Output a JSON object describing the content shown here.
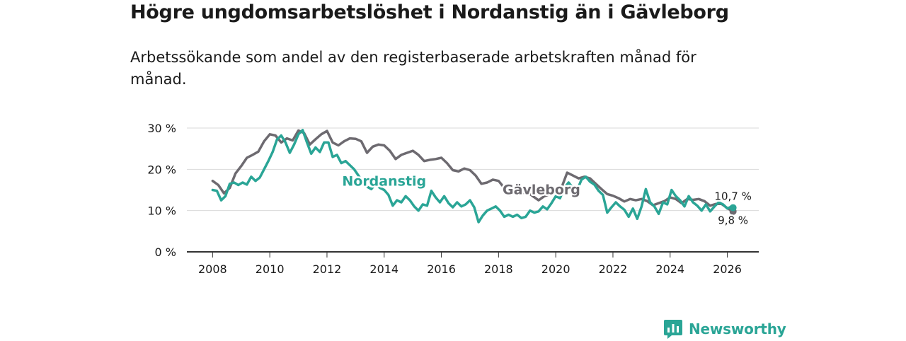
{
  "title": "Högre ungdomsarbetslöshet i Nordanstig än i Gävleborg",
  "subtitle": "Arbetssökande som andel av den registerbaserade arbetskraften månad för månad.",
  "brand": {
    "name": "Newsworthy"
  },
  "colors": {
    "nordanstig": "#2aa596",
    "gavleborg": "#6d6a70",
    "grid": "#d9d9d9",
    "axis": "#333333",
    "text": "#1a1a1a"
  },
  "chart_data": {
    "type": "line",
    "title": "Högre ungdomsarbetslöshet i Nordanstig än i Gävleborg",
    "xlabel": "",
    "ylabel": "",
    "xlim": [
      2007.1,
      2027.1
    ],
    "ylim": [
      0,
      30
    ],
    "y_ticks": [
      0,
      10,
      20,
      30
    ],
    "y_tick_labels": [
      "0 %",
      "10 %",
      "20 %",
      "30 %"
    ],
    "x_ticks": [
      2008,
      2010,
      2012,
      2014,
      2016,
      2018,
      2020,
      2022,
      2024,
      2026
    ],
    "x_tick_labels": [
      "2008",
      "2010",
      "2012",
      "2014",
      "2016",
      "2018",
      "2020",
      "2022",
      "2024",
      "2026"
    ],
    "grid": true,
    "series": [
      {
        "name": "Gävleborg",
        "label": "Gävleborg",
        "end_label": "9,8 %",
        "points": [
          [
            2008.0,
            17.2
          ],
          [
            2008.2,
            16.2
          ],
          [
            2008.4,
            14.2
          ],
          [
            2008.6,
            15.5
          ],
          [
            2008.8,
            19.0
          ],
          [
            2009.0,
            20.8
          ],
          [
            2009.2,
            22.8
          ],
          [
            2009.4,
            23.5
          ],
          [
            2009.6,
            24.3
          ],
          [
            2009.8,
            26.8
          ],
          [
            2010.0,
            28.5
          ],
          [
            2010.2,
            28.2
          ],
          [
            2010.4,
            26.5
          ],
          [
            2010.6,
            27.5
          ],
          [
            2010.8,
            27.0
          ],
          [
            2011.0,
            29.4
          ],
          [
            2011.2,
            28.8
          ],
          [
            2011.4,
            26.0
          ],
          [
            2011.6,
            27.3
          ],
          [
            2011.8,
            28.5
          ],
          [
            2012.0,
            29.3
          ],
          [
            2012.2,
            26.5
          ],
          [
            2012.4,
            25.8
          ],
          [
            2012.6,
            26.8
          ],
          [
            2012.8,
            27.5
          ],
          [
            2013.0,
            27.4
          ],
          [
            2013.2,
            26.8
          ],
          [
            2013.4,
            24.0
          ],
          [
            2013.6,
            25.5
          ],
          [
            2013.8,
            26.0
          ],
          [
            2014.0,
            25.8
          ],
          [
            2014.2,
            24.5
          ],
          [
            2014.4,
            22.5
          ],
          [
            2014.6,
            23.5
          ],
          [
            2014.8,
            24.0
          ],
          [
            2015.0,
            24.5
          ],
          [
            2015.2,
            23.5
          ],
          [
            2015.4,
            22.0
          ],
          [
            2015.6,
            22.3
          ],
          [
            2015.8,
            22.5
          ],
          [
            2016.0,
            22.8
          ],
          [
            2016.2,
            21.5
          ],
          [
            2016.4,
            19.8
          ],
          [
            2016.6,
            19.5
          ],
          [
            2016.8,
            20.2
          ],
          [
            2017.0,
            19.8
          ],
          [
            2017.2,
            18.5
          ],
          [
            2017.4,
            16.5
          ],
          [
            2017.6,
            16.8
          ],
          [
            2017.8,
            17.5
          ],
          [
            2018.0,
            17.2
          ],
          [
            2018.2,
            15.5
          ],
          [
            2018.4,
            13.8
          ],
          [
            2018.6,
            14.5
          ],
          [
            2018.8,
            14.2
          ],
          [
            2019.0,
            14.5
          ],
          [
            2019.2,
            13.5
          ],
          [
            2019.4,
            12.5
          ],
          [
            2019.6,
            13.5
          ],
          [
            2019.8,
            14.0
          ],
          [
            2020.0,
            14.8
          ],
          [
            2020.2,
            15.5
          ],
          [
            2020.4,
            19.2
          ],
          [
            2020.6,
            18.5
          ],
          [
            2020.8,
            17.8
          ],
          [
            2021.0,
            18.2
          ],
          [
            2021.2,
            17.8
          ],
          [
            2021.4,
            16.5
          ],
          [
            2021.6,
            15.2
          ],
          [
            2021.8,
            14.0
          ],
          [
            2022.0,
            13.6
          ],
          [
            2022.2,
            13.0
          ],
          [
            2022.4,
            12.2
          ],
          [
            2022.6,
            12.8
          ],
          [
            2022.8,
            12.5
          ],
          [
            2023.0,
            12.8
          ],
          [
            2023.2,
            12.3
          ],
          [
            2023.4,
            11.3
          ],
          [
            2023.6,
            11.8
          ],
          [
            2023.8,
            12.3
          ],
          [
            2024.0,
            13.2
          ],
          [
            2024.2,
            12.8
          ],
          [
            2024.4,
            11.8
          ],
          [
            2024.6,
            12.8
          ],
          [
            2024.8,
            12.6
          ],
          [
            2025.0,
            12.8
          ],
          [
            2025.2,
            12.3
          ],
          [
            2025.4,
            11.2
          ],
          [
            2025.6,
            11.6
          ],
          [
            2025.8,
            11.6
          ],
          [
            2026.0,
            10.6
          ],
          [
            2026.2,
            9.8
          ]
        ]
      },
      {
        "name": "Nordanstig",
        "label": "Nordanstig",
        "end_label": "10,7 %",
        "points": [
          [
            2008.0,
            15.0
          ],
          [
            2008.15,
            14.8
          ],
          [
            2008.3,
            12.5
          ],
          [
            2008.45,
            13.5
          ],
          [
            2008.6,
            16.5
          ],
          [
            2008.75,
            16.8
          ],
          [
            2008.9,
            16.2
          ],
          [
            2009.05,
            16.8
          ],
          [
            2009.2,
            16.3
          ],
          [
            2009.35,
            18.2
          ],
          [
            2009.5,
            17.2
          ],
          [
            2009.65,
            18.0
          ],
          [
            2009.8,
            20.0
          ],
          [
            2009.95,
            22.0
          ],
          [
            2010.1,
            24.2
          ],
          [
            2010.25,
            27.2
          ],
          [
            2010.4,
            28.2
          ],
          [
            2010.55,
            26.5
          ],
          [
            2010.7,
            24.0
          ],
          [
            2010.85,
            26.0
          ],
          [
            2011.0,
            28.5
          ],
          [
            2011.15,
            29.5
          ],
          [
            2011.3,
            26.5
          ],
          [
            2011.45,
            23.8
          ],
          [
            2011.6,
            25.3
          ],
          [
            2011.75,
            24.2
          ],
          [
            2011.9,
            26.5
          ],
          [
            2012.05,
            26.5
          ],
          [
            2012.2,
            23.0
          ],
          [
            2012.35,
            23.5
          ],
          [
            2012.5,
            21.5
          ],
          [
            2012.65,
            22.0
          ],
          [
            2012.8,
            21.0
          ],
          [
            2012.95,
            20.0
          ],
          [
            2013.1,
            18.5
          ],
          [
            2013.25,
            16.8
          ],
          [
            2013.4,
            15.8
          ],
          [
            2013.55,
            15.2
          ],
          [
            2013.7,
            16.5
          ],
          [
            2013.85,
            15.5
          ],
          [
            2014.0,
            15.0
          ],
          [
            2014.15,
            13.8
          ],
          [
            2014.3,
            11.2
          ],
          [
            2014.45,
            12.5
          ],
          [
            2014.6,
            12.0
          ],
          [
            2014.75,
            13.5
          ],
          [
            2014.9,
            12.5
          ],
          [
            2015.05,
            11.0
          ],
          [
            2015.2,
            10.0
          ],
          [
            2015.35,
            11.5
          ],
          [
            2015.5,
            11.2
          ],
          [
            2015.65,
            14.8
          ],
          [
            2015.8,
            13.2
          ],
          [
            2015.95,
            12.0
          ],
          [
            2016.1,
            13.5
          ],
          [
            2016.25,
            11.8
          ],
          [
            2016.4,
            10.8
          ],
          [
            2016.55,
            12.0
          ],
          [
            2016.7,
            11.0
          ],
          [
            2016.85,
            11.5
          ],
          [
            2017.0,
            12.5
          ],
          [
            2017.15,
            10.8
          ],
          [
            2017.3,
            7.2
          ],
          [
            2017.45,
            8.8
          ],
          [
            2017.6,
            10.0
          ],
          [
            2017.75,
            10.5
          ],
          [
            2017.9,
            11.0
          ],
          [
            2018.05,
            10.0
          ],
          [
            2018.2,
            8.5
          ],
          [
            2018.35,
            9.0
          ],
          [
            2018.5,
            8.5
          ],
          [
            2018.65,
            9.0
          ],
          [
            2018.8,
            8.2
          ],
          [
            2018.95,
            8.5
          ],
          [
            2019.1,
            10.0
          ],
          [
            2019.25,
            9.5
          ],
          [
            2019.4,
            9.8
          ],
          [
            2019.55,
            11.0
          ],
          [
            2019.7,
            10.3
          ],
          [
            2019.85,
            11.8
          ],
          [
            2020.0,
            13.5
          ],
          [
            2020.15,
            13.0
          ],
          [
            2020.3,
            15.5
          ],
          [
            2020.45,
            16.8
          ],
          [
            2020.6,
            15.5
          ],
          [
            2020.75,
            15.0
          ],
          [
            2020.9,
            17.5
          ],
          [
            2021.05,
            18.2
          ],
          [
            2021.2,
            17.0
          ],
          [
            2021.35,
            16.3
          ],
          [
            2021.5,
            14.8
          ],
          [
            2021.65,
            13.8
          ],
          [
            2021.8,
            9.5
          ],
          [
            2021.95,
            10.8
          ],
          [
            2022.1,
            12.0
          ],
          [
            2022.25,
            11.0
          ],
          [
            2022.4,
            10.2
          ],
          [
            2022.55,
            8.5
          ],
          [
            2022.7,
            10.5
          ],
          [
            2022.85,
            8.0
          ],
          [
            2023.0,
            11.0
          ],
          [
            2023.15,
            15.2
          ],
          [
            2023.3,
            12.0
          ],
          [
            2023.45,
            11.0
          ],
          [
            2023.6,
            9.2
          ],
          [
            2023.75,
            12.0
          ],
          [
            2023.9,
            11.5
          ],
          [
            2024.05,
            15.0
          ],
          [
            2024.2,
            13.5
          ],
          [
            2024.35,
            12.5
          ],
          [
            2024.5,
            11.0
          ],
          [
            2024.65,
            13.5
          ],
          [
            2024.8,
            12.0
          ],
          [
            2024.95,
            11.2
          ],
          [
            2025.1,
            10.0
          ],
          [
            2025.25,
            11.5
          ],
          [
            2025.4,
            9.8
          ],
          [
            2025.55,
            11.0
          ],
          [
            2025.7,
            12.0
          ],
          [
            2025.85,
            11.5
          ],
          [
            2026.0,
            10.5
          ],
          [
            2026.15,
            11.0
          ],
          [
            2026.2,
            10.7
          ]
        ]
      }
    ]
  }
}
